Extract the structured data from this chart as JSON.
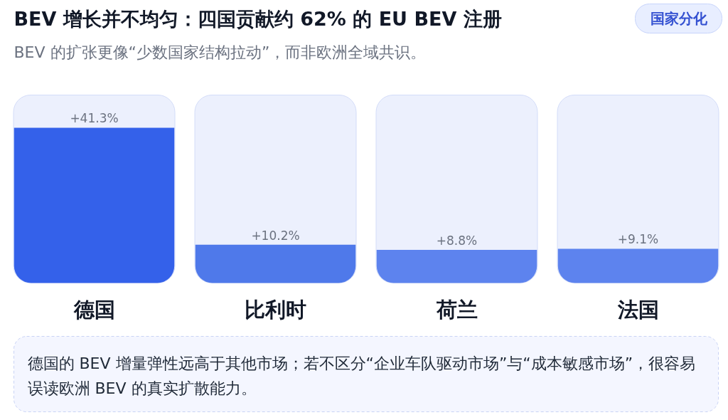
{
  "chart_data": {
    "type": "bar",
    "title": "BEV 增长并不均匀：四国贡献约 62% 的 EU BEV 注册",
    "subtitle": "BEV 的扩张更像“少数国家结构拉动”，而非欧洲全域共识。",
    "categories": [
      "德国",
      "比利时",
      "荷兰",
      "法国"
    ],
    "values": [
      41.3,
      10.2,
      8.8,
      9.1
    ],
    "colors": [
      "#3461ea",
      "#4f79ea",
      "#5d83ee",
      "#5d83ee"
    ],
    "value_labels": [
      "+41.3%",
      "+10.2%",
      "+8.8%",
      "+9.1%"
    ],
    "ylim": [
      0,
      50
    ],
    "tick_labels": "x",
    "annotations": [
      "国家分化",
      "德国的 BEV 增量弹性远高于其他市场；若不区分“企业车队驱动市场”与“成本敏感市场”，很容易误读欧洲 BEV 的真实扩散能力。"
    ]
  }
}
